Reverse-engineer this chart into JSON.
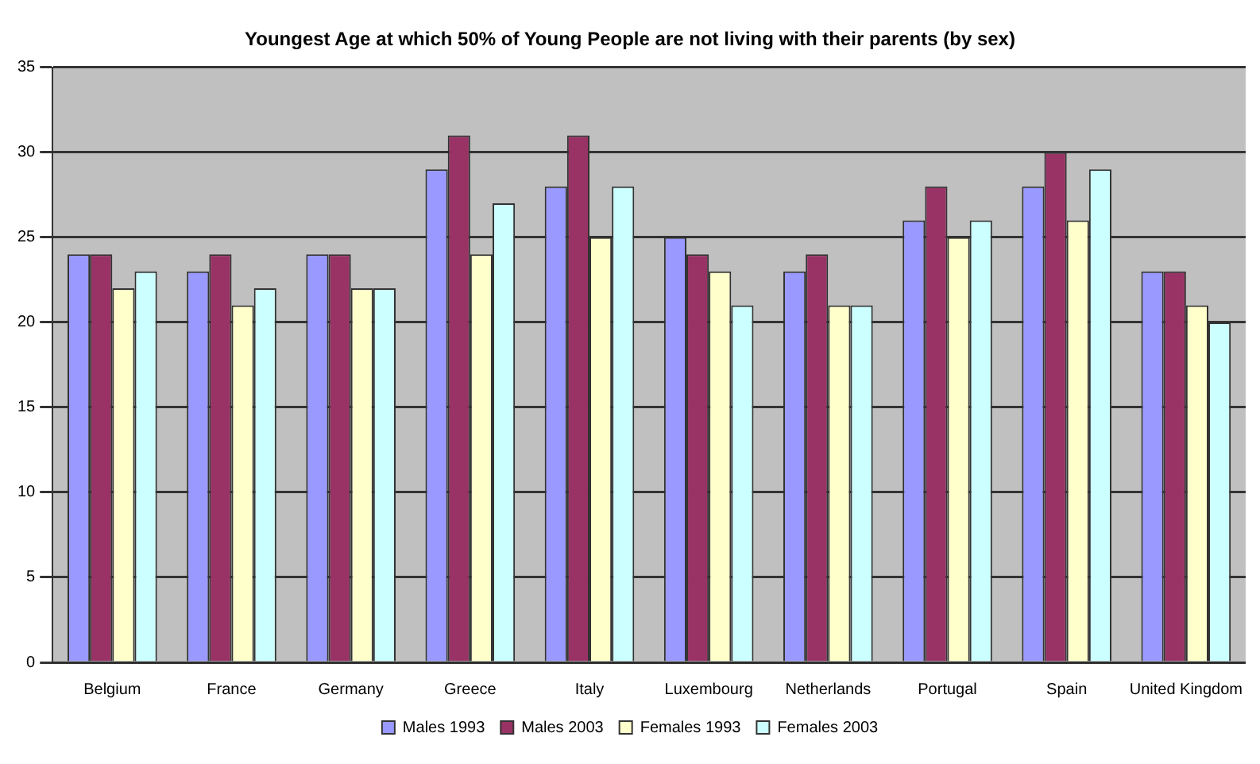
{
  "chart_data": {
    "type": "bar",
    "title": "Youngest Age at which 50% of Young People are not living with their parents (by sex)",
    "categories": [
      "Belgium",
      "France",
      "Germany",
      "Greece",
      "Italy",
      "Luxembourg",
      "Netherlands",
      "Portugal",
      "Spain",
      "United Kingdom"
    ],
    "series": [
      {
        "name": "Males 1993",
        "color": "#9999ff",
        "values": [
          24,
          23,
          24,
          29,
          28,
          25,
          23,
          26,
          28,
          23
        ]
      },
      {
        "name": "Males 2003",
        "color": "#993366",
        "values": [
          24,
          24,
          24,
          31,
          31,
          24,
          24,
          28,
          30,
          23
        ]
      },
      {
        "name": "Females 1993",
        "color": "#ffffcc",
        "values": [
          22,
          21,
          22,
          24,
          25,
          23,
          21,
          25,
          26,
          21
        ]
      },
      {
        "name": "Females 2003",
        "color": "#ccffff",
        "values": [
          23,
          22,
          22,
          27,
          28,
          21,
          21,
          26,
          29,
          20
        ]
      }
    ],
    "ylim": [
      0,
      35
    ],
    "yticks": [
      0,
      5,
      10,
      15,
      20,
      25,
      30,
      35
    ],
    "grid": "y",
    "legend": "bottom"
  }
}
